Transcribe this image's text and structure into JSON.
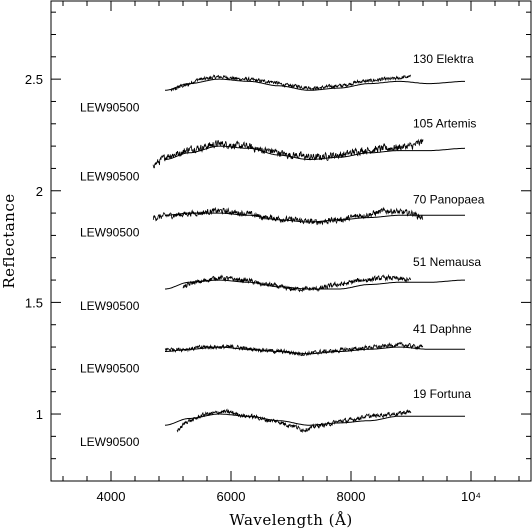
{
  "chart_data": {
    "type": "line",
    "title": "",
    "xlabel": "Wavelength (Å)",
    "ylabel": "Reflectance",
    "xlim": [
      3000,
      11000
    ],
    "ylim": [
      0.7,
      2.85
    ],
    "x_ticks": [
      {
        "value": 4000,
        "label": "4000"
      },
      {
        "value": 6000,
        "label": "6000"
      },
      {
        "value": 8000,
        "label": "8000"
      },
      {
        "value": 10000,
        "label": "10⁴"
      }
    ],
    "y_ticks": [
      {
        "value": 1.0,
        "label": "1"
      },
      {
        "value": 1.5,
        "label": "1.5"
      },
      {
        "value": 2.0,
        "label": "2"
      },
      {
        "value": 2.5,
        "label": "2.5"
      }
    ],
    "grid": false,
    "legend": "none",
    "panels": [
      {
        "asteroid": "130 Elektra",
        "meteorite": "LEW90500",
        "meteorite_points": [
          [
            4900,
            2.45
          ],
          [
            5300,
            2.48
          ],
          [
            5800,
            2.5
          ],
          [
            6300,
            2.49
          ],
          [
            6800,
            2.47
          ],
          [
            7300,
            2.45
          ],
          [
            7800,
            2.46
          ],
          [
            8300,
            2.48
          ],
          [
            8800,
            2.49
          ],
          [
            9300,
            2.48
          ],
          [
            9900,
            2.49
          ]
        ],
        "asteroid_points": [
          [
            5000,
            2.45
          ],
          [
            5200,
            2.47
          ],
          [
            5500,
            2.5
          ],
          [
            5800,
            2.51
          ],
          [
            6200,
            2.5
          ],
          [
            6600,
            2.49
          ],
          [
            7000,
            2.47
          ],
          [
            7400,
            2.46
          ],
          [
            7800,
            2.47
          ],
          [
            8200,
            2.49
          ],
          [
            8600,
            2.5
          ],
          [
            9000,
            2.51
          ]
        ],
        "asteroid_noise": 0.007
      },
      {
        "asteroid": "105 Artemis",
        "meteorite": "LEW90500",
        "meteorite_points": [
          [
            4900,
            2.14
          ],
          [
            5300,
            2.17
          ],
          [
            5800,
            2.2
          ],
          [
            6300,
            2.19
          ],
          [
            6800,
            2.16
          ],
          [
            7300,
            2.14
          ],
          [
            7800,
            2.15
          ],
          [
            8300,
            2.17
          ],
          [
            8800,
            2.18
          ],
          [
            9300,
            2.18
          ],
          [
            9900,
            2.19
          ]
        ],
        "asteroid_points": [
          [
            4700,
            2.12
          ],
          [
            5000,
            2.16
          ],
          [
            5400,
            2.19
          ],
          [
            5800,
            2.21
          ],
          [
            6200,
            2.2
          ],
          [
            6600,
            2.18
          ],
          [
            7000,
            2.16
          ],
          [
            7400,
            2.15
          ],
          [
            7800,
            2.16
          ],
          [
            8200,
            2.18
          ],
          [
            8600,
            2.19
          ],
          [
            9000,
            2.2
          ],
          [
            9200,
            2.22
          ]
        ],
        "asteroid_noise": 0.014
      },
      {
        "asteroid": "70 Panopaea",
        "meteorite": "LEW90500",
        "meteorite_points": [
          [
            4900,
            1.89
          ],
          [
            5300,
            1.9
          ],
          [
            5800,
            1.9
          ],
          [
            6300,
            1.89
          ],
          [
            6800,
            1.87
          ],
          [
            7300,
            1.86
          ],
          [
            7800,
            1.87
          ],
          [
            8300,
            1.88
          ],
          [
            8800,
            1.89
          ],
          [
            9300,
            1.89
          ],
          [
            9900,
            1.89
          ]
        ],
        "asteroid_points": [
          [
            4700,
            1.88
          ],
          [
            5000,
            1.89
          ],
          [
            5400,
            1.9
          ],
          [
            5800,
            1.91
          ],
          [
            6200,
            1.9
          ],
          [
            6600,
            1.88
          ],
          [
            7000,
            1.87
          ],
          [
            7400,
            1.86
          ],
          [
            7800,
            1.87
          ],
          [
            8200,
            1.89
          ],
          [
            8600,
            1.91
          ],
          [
            9000,
            1.9
          ],
          [
            9200,
            1.88
          ]
        ],
        "asteroid_noise": 0.011
      },
      {
        "asteroid": "51 Nemausa",
        "meteorite": "LEW90500",
        "meteorite_points": [
          [
            4900,
            1.56
          ],
          [
            5300,
            1.59
          ],
          [
            5800,
            1.6
          ],
          [
            6300,
            1.59
          ],
          [
            6800,
            1.57
          ],
          [
            7300,
            1.56
          ],
          [
            7800,
            1.56
          ],
          [
            8300,
            1.58
          ],
          [
            8800,
            1.59
          ],
          [
            9300,
            1.59
          ],
          [
            9900,
            1.6
          ]
        ],
        "asteroid_points": [
          [
            5200,
            1.57
          ],
          [
            5400,
            1.59
          ],
          [
            5800,
            1.61
          ],
          [
            6200,
            1.6
          ],
          [
            6600,
            1.58
          ],
          [
            7000,
            1.56
          ],
          [
            7400,
            1.56
          ],
          [
            7800,
            1.58
          ],
          [
            8200,
            1.6
          ],
          [
            8600,
            1.61
          ],
          [
            9000,
            1.6
          ]
        ],
        "asteroid_noise": 0.009
      },
      {
        "asteroid": "41 Daphne",
        "meteorite": "LEW90500",
        "meteorite_points": [
          [
            4900,
            1.28
          ],
          [
            5300,
            1.29
          ],
          [
            5800,
            1.3
          ],
          [
            6300,
            1.29
          ],
          [
            6800,
            1.28
          ],
          [
            7300,
            1.27
          ],
          [
            7800,
            1.28
          ],
          [
            8300,
            1.29
          ],
          [
            8800,
            1.3
          ],
          [
            9300,
            1.29
          ],
          [
            9900,
            1.29
          ]
        ],
        "asteroid_points": [
          [
            4900,
            1.29
          ],
          [
            5200,
            1.29
          ],
          [
            5600,
            1.3
          ],
          [
            6000,
            1.3
          ],
          [
            6400,
            1.29
          ],
          [
            6800,
            1.28
          ],
          [
            7200,
            1.27
          ],
          [
            7600,
            1.28
          ],
          [
            8000,
            1.29
          ],
          [
            8400,
            1.3
          ],
          [
            8800,
            1.31
          ],
          [
            9200,
            1.3
          ]
        ],
        "asteroid_noise": 0.008
      },
      {
        "asteroid": "19 Fortuna",
        "meteorite": "LEW90500",
        "meteorite_points": [
          [
            4900,
            0.95
          ],
          [
            5300,
            0.98
          ],
          [
            5800,
            1.0
          ],
          [
            6300,
            0.99
          ],
          [
            6800,
            0.97
          ],
          [
            7300,
            0.95
          ],
          [
            7800,
            0.96
          ],
          [
            8300,
            0.97
          ],
          [
            8800,
            0.99
          ],
          [
            9300,
            0.99
          ],
          [
            9900,
            0.99
          ]
        ],
        "asteroid_points": [
          [
            5100,
            0.93
          ],
          [
            5300,
            0.97
          ],
          [
            5600,
            1.0
          ],
          [
            5900,
            1.01
          ],
          [
            6300,
            0.99
          ],
          [
            6700,
            0.97
          ],
          [
            7000,
            0.95
          ],
          [
            7200,
            0.93
          ],
          [
            7500,
            0.95
          ],
          [
            7900,
            0.97
          ],
          [
            8300,
            0.99
          ],
          [
            8700,
            1.0
          ],
          [
            9000,
            1.01
          ]
        ],
        "asteroid_noise": 0.008
      }
    ]
  }
}
